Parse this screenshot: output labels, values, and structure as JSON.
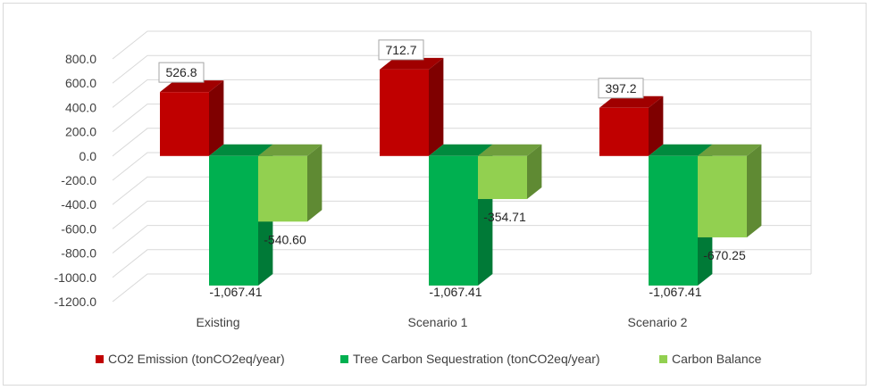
{
  "chart_data": {
    "type": "bar",
    "style": "3d-clustered-column",
    "categories": [
      "Existing",
      "Scenario 1",
      "Scenario 2"
    ],
    "series": [
      {
        "name": "CO2 Emission (tonCO2eq/year)",
        "values": [
          526.8,
          712.7,
          397.2
        ],
        "labels": [
          "526.8",
          "712.7",
          "397.2"
        ],
        "color": "#c00000",
        "side_color": "#7f0000",
        "top_color": "#a00000",
        "boxed_labels": true
      },
      {
        "name": "Tree Carbon Sequestration (tonCO2eq/year)",
        "values": [
          -1067.41,
          -1067.41,
          -1067.41
        ],
        "labels": [
          "-1,067.41",
          "-1,067.41",
          "-1,067.41"
        ],
        "color": "#00b050",
        "side_color": "#007a37",
        "top_color": "#008a3e",
        "boxed_labels": false
      },
      {
        "name": "Carbon Balance",
        "values": [
          -540.6,
          -354.71,
          -670.25
        ],
        "labels": [
          "-540.60",
          "-354.71",
          "-670.25"
        ],
        "color": "#92d050",
        "side_color": "#5f8a33",
        "top_color": "#6f9e3d",
        "boxed_labels": false
      }
    ],
    "yticks": [
      "800.0",
      "600.0",
      "400.0",
      "200.0",
      "0.0",
      "-200.0",
      "-400.0",
      "-600.0",
      "-800.0",
      "-1000.0",
      "-1200.0"
    ],
    "ylim": [
      -1200,
      800
    ],
    "grid": true,
    "legend": "bottom"
  }
}
